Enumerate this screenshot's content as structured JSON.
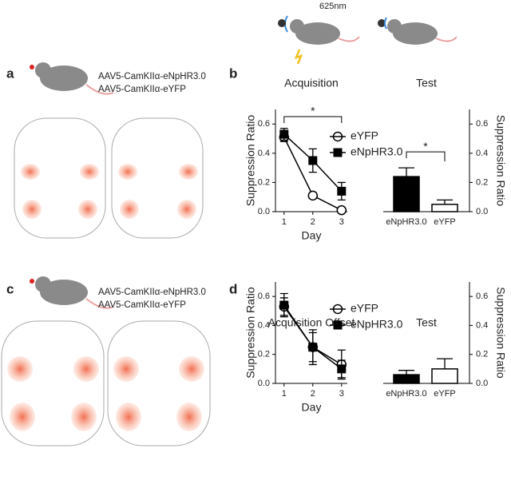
{
  "figure": {
    "panel_labels": [
      "a",
      "b",
      "c",
      "d"
    ],
    "wavelength": "625nm",
    "virus_a": [
      "AAV5-CamKIIα-eNpHR3.0",
      "AAV5-CamKIIα-eYFP"
    ],
    "virus_c": [
      "AAV5-CamKIIα-eNpHR3.0",
      "AAV5-CamKIIα-eYFP"
    ]
  },
  "chart_data": [
    {
      "type": "line",
      "title": "Acquisition",
      "annotation": "*",
      "xlabel": "Day",
      "ylabel": "Suppression Ratio",
      "x": [
        1,
        2,
        3
      ],
      "xlim": [
        0.7,
        3.2
      ],
      "xticks": [
        1,
        2,
        3
      ],
      "ylim": [
        0,
        0.7
      ],
      "yticks": [
        {
          "value": 0,
          "label": "0.0"
        },
        0.2,
        0.4,
        0.6
      ],
      "series": [
        {
          "name": "eYFP",
          "color": "#ffffff",
          "marker": "circle",
          "values": [
            0.51,
            0.11,
            0.01
          ],
          "errors": [
            0.03,
            0.02,
            0.01
          ]
        },
        {
          "name": "eNpHR3.0",
          "color": "#000000",
          "marker": "square",
          "values": [
            0.53,
            0.35,
            0.14
          ],
          "errors": [
            0.04,
            0.08,
            0.06
          ]
        }
      ]
    },
    {
      "type": "bar",
      "title": "Test",
      "annotation": "*",
      "ylabel": "Suppression Ratio",
      "categories": [
        "eNpHR3.0",
        "eYFP"
      ],
      "values": [
        0.24,
        0.05
      ],
      "errors": [
        0.06,
        0.03
      ],
      "colors": [
        "#000000",
        "#ffffff"
      ],
      "ylim": [
        0,
        0.7
      ],
      "yticks": [
        {
          "value": 0,
          "label": "0.0"
        },
        0.2,
        0.4,
        0.6
      ]
    },
    {
      "type": "line",
      "title": "Acquisition Offset",
      "xlabel": "Day",
      "ylabel": "Suppression Ratio",
      "x": [
        1,
        2,
        3
      ],
      "xlim": [
        0.7,
        3.2
      ],
      "xticks": [
        1,
        2,
        3
      ],
      "ylim": [
        0,
        0.7
      ],
      "yticks": [
        {
          "value": 0,
          "label": "0.0"
        },
        0.2,
        0.4,
        0.6
      ],
      "series": [
        {
          "name": "eYFP",
          "color": "#ffffff",
          "marker": "circle",
          "values": [
            0.53,
            0.25,
            0.13
          ],
          "errors": [
            0.06,
            0.1,
            0.1
          ]
        },
        {
          "name": "eNpHR3.0",
          "color": "#000000",
          "marker": "square",
          "values": [
            0.54,
            0.25,
            0.1
          ],
          "errors": [
            0.08,
            0.12,
            0.06
          ]
        }
      ]
    },
    {
      "type": "bar",
      "title": "Test",
      "ylabel": "Suppression Ratio",
      "categories": [
        "eNpHR3.0",
        "eYFP"
      ],
      "values": [
        0.06,
        0.1
      ],
      "errors": [
        0.03,
        0.07
      ],
      "colors": [
        "#000000",
        "#ffffff"
      ],
      "ylim": [
        0,
        0.7
      ],
      "yticks": [
        {
          "value": 0,
          "label": "0.0"
        },
        0.2,
        0.4,
        0.6
      ]
    }
  ]
}
